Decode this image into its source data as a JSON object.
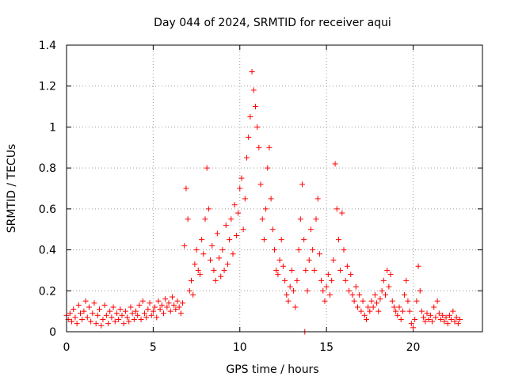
{
  "chart_data": {
    "type": "scatter",
    "title": "Day 044 of 2024, SRMTID for receiver aqui",
    "xlabel": "GPS time / hours",
    "ylabel": "SRMTID / TECUs",
    "xlim": [
      0,
      24
    ],
    "ylim": [
      0,
      1.4
    ],
    "xticks": [
      0,
      5,
      10,
      15,
      20
    ],
    "yticks": [
      0,
      0.2,
      0.4,
      0.6,
      0.8,
      1,
      1.2,
      1.4
    ],
    "xtick_labels": [
      "0",
      "5",
      "10",
      "15",
      "20"
    ],
    "ytick_labels": [
      "0",
      "0.2",
      "0.4",
      "0.6",
      "0.8",
      "1",
      "1.2",
      "1.4"
    ],
    "grid": true,
    "marker": "+",
    "color": "#ff0000",
    "series": [
      {
        "name": "SRMTID",
        "points": [
          [
            0.0,
            0.08
          ],
          [
            0.1,
            0.06
          ],
          [
            0.2,
            0.09
          ],
          [
            0.3,
            0.05
          ],
          [
            0.4,
            0.11
          ],
          [
            0.5,
            0.07
          ],
          [
            0.6,
            0.04
          ],
          [
            0.7,
            0.13
          ],
          [
            0.8,
            0.09
          ],
          [
            0.9,
            0.06
          ],
          [
            1.0,
            0.1
          ],
          [
            1.1,
            0.15
          ],
          [
            1.2,
            0.07
          ],
          [
            1.3,
            0.12
          ],
          [
            1.4,
            0.05
          ],
          [
            1.5,
            0.09
          ],
          [
            1.6,
            0.14
          ],
          [
            1.7,
            0.04
          ],
          [
            1.8,
            0.08
          ],
          [
            1.9,
            0.11
          ],
          [
            2.0,
            0.03
          ],
          [
            2.1,
            0.06
          ],
          [
            2.2,
            0.13
          ],
          [
            2.3,
            0.08
          ],
          [
            2.4,
            0.04
          ],
          [
            2.5,
            0.1
          ],
          [
            2.6,
            0.07
          ],
          [
            2.7,
            0.12
          ],
          [
            2.8,
            0.05
          ],
          [
            2.9,
            0.09
          ],
          [
            3.0,
            0.06
          ],
          [
            3.1,
            0.11
          ],
          [
            3.2,
            0.08
          ],
          [
            3.3,
            0.04
          ],
          [
            3.4,
            0.1
          ],
          [
            3.5,
            0.07
          ],
          [
            3.6,
            0.05
          ],
          [
            3.7,
            0.12
          ],
          [
            3.8,
            0.09
          ],
          [
            3.9,
            0.06
          ],
          [
            4.0,
            0.1
          ],
          [
            4.1,
            0.08
          ],
          [
            4.2,
            0.13
          ],
          [
            4.3,
            0.06
          ],
          [
            4.4,
            0.15
          ],
          [
            4.5,
            0.09
          ],
          [
            4.6,
            0.07
          ],
          [
            4.7,
            0.11
          ],
          [
            4.8,
            0.14
          ],
          [
            4.9,
            0.08
          ],
          [
            5.0,
            0.1
          ],
          [
            5.1,
            0.12
          ],
          [
            5.2,
            0.07
          ],
          [
            5.3,
            0.15
          ],
          [
            5.4,
            0.11
          ],
          [
            5.5,
            0.13
          ],
          [
            5.6,
            0.09
          ],
          [
            5.7,
            0.16
          ],
          [
            5.8,
            0.12
          ],
          [
            5.9,
            0.14
          ],
          [
            6.0,
            0.1
          ],
          [
            6.1,
            0.17
          ],
          [
            6.2,
            0.13
          ],
          [
            6.3,
            0.11
          ],
          [
            6.4,
            0.15
          ],
          [
            6.5,
            0.12
          ],
          [
            6.6,
            0.09
          ],
          [
            6.7,
            0.14
          ],
          [
            6.8,
            0.42
          ],
          [
            6.9,
            0.7
          ],
          [
            7.0,
            0.55
          ],
          [
            7.1,
            0.2
          ],
          [
            7.2,
            0.25
          ],
          [
            7.3,
            0.18
          ],
          [
            7.4,
            0.33
          ],
          [
            7.5,
            0.4
          ],
          [
            7.6,
            0.3
          ],
          [
            7.7,
            0.28
          ],
          [
            7.8,
            0.45
          ],
          [
            7.9,
            0.38
          ],
          [
            8.0,
            0.55
          ],
          [
            8.1,
            0.8
          ],
          [
            8.2,
            0.6
          ],
          [
            8.3,
            0.35
          ],
          [
            8.4,
            0.42
          ],
          [
            8.5,
            0.3
          ],
          [
            8.6,
            0.25
          ],
          [
            8.7,
            0.48
          ],
          [
            8.8,
            0.36
          ],
          [
            8.9,
            0.27
          ],
          [
            9.0,
            0.4
          ],
          [
            9.1,
            0.3
          ],
          [
            9.2,
            0.52
          ],
          [
            9.3,
            0.33
          ],
          [
            9.4,
            0.45
          ],
          [
            9.5,
            0.55
          ],
          [
            9.6,
            0.38
          ],
          [
            9.7,
            0.62
          ],
          [
            9.8,
            0.47
          ],
          [
            9.9,
            0.58
          ],
          [
            10.0,
            0.7
          ],
          [
            10.1,
            0.75
          ],
          [
            10.2,
            0.5
          ],
          [
            10.3,
            0.65
          ],
          [
            10.4,
            0.85
          ],
          [
            10.5,
            0.95
          ],
          [
            10.6,
            1.05
          ],
          [
            10.7,
            1.27
          ],
          [
            10.8,
            1.18
          ],
          [
            10.9,
            1.1
          ],
          [
            11.0,
            1.0
          ],
          [
            11.1,
            0.9
          ],
          [
            11.2,
            0.72
          ],
          [
            11.3,
            0.55
          ],
          [
            11.4,
            0.45
          ],
          [
            11.5,
            0.6
          ],
          [
            11.6,
            0.8
          ],
          [
            11.7,
            0.9
          ],
          [
            11.8,
            0.65
          ],
          [
            11.9,
            0.5
          ],
          [
            12.0,
            0.4
          ],
          [
            12.1,
            0.3
          ],
          [
            12.2,
            0.28
          ],
          [
            12.3,
            0.35
          ],
          [
            12.4,
            0.45
          ],
          [
            12.5,
            0.32
          ],
          [
            12.6,
            0.25
          ],
          [
            12.7,
            0.18
          ],
          [
            12.8,
            0.15
          ],
          [
            12.9,
            0.22
          ],
          [
            13.0,
            0.3
          ],
          [
            13.1,
            0.2
          ],
          [
            13.2,
            0.12
          ],
          [
            13.3,
            0.25
          ],
          [
            13.4,
            0.4
          ],
          [
            13.5,
            0.55
          ],
          [
            13.6,
            0.72
          ],
          [
            13.7,
            0.45
          ],
          [
            13.8,
            0.3
          ],
          [
            13.9,
            0.2
          ],
          [
            14.0,
            0.35
          ],
          [
            14.1,
            0.5
          ],
          [
            14.2,
            0.4
          ],
          [
            14.3,
            0.3
          ],
          [
            14.4,
            0.55
          ],
          [
            14.5,
            0.65
          ],
          [
            14.6,
            0.38
          ],
          [
            14.7,
            0.25
          ],
          [
            14.8,
            0.2
          ],
          [
            14.9,
            0.15
          ],
          [
            15.0,
            0.22
          ],
          [
            15.1,
            0.28
          ],
          [
            15.2,
            0.18
          ],
          [
            15.3,
            0.25
          ],
          [
            15.4,
            0.35
          ],
          [
            15.5,
            0.82
          ],
          [
            15.6,
            0.6
          ],
          [
            15.7,
            0.45
          ],
          [
            15.8,
            0.3
          ],
          [
            15.9,
            0.58
          ],
          [
            16.0,
            0.4
          ],
          [
            16.1,
            0.25
          ],
          [
            16.2,
            0.32
          ],
          [
            16.3,
            0.2
          ],
          [
            16.4,
            0.28
          ],
          [
            16.5,
            0.18
          ],
          [
            16.6,
            0.15
          ],
          [
            16.7,
            0.22
          ],
          [
            16.8,
            0.12
          ],
          [
            16.9,
            0.18
          ],
          [
            17.0,
            0.1
          ],
          [
            17.1,
            0.15
          ],
          [
            17.2,
            0.08
          ],
          [
            17.3,
            0.06
          ],
          [
            17.4,
            0.12
          ],
          [
            17.5,
            0.1
          ],
          [
            17.6,
            0.15
          ],
          [
            17.7,
            0.12
          ],
          [
            17.8,
            0.18
          ],
          [
            17.9,
            0.14
          ],
          [
            18.0,
            0.1
          ],
          [
            18.1,
            0.16
          ],
          [
            18.2,
            0.2
          ],
          [
            18.3,
            0.25
          ],
          [
            18.4,
            0.18
          ],
          [
            18.5,
            0.3
          ],
          [
            18.6,
            0.22
          ],
          [
            18.7,
            0.28
          ],
          [
            18.8,
            0.15
          ],
          [
            18.9,
            0.12
          ],
          [
            19.0,
            0.1
          ],
          [
            19.1,
            0.08
          ],
          [
            19.2,
            0.12
          ],
          [
            19.3,
            0.06
          ],
          [
            19.4,
            0.1
          ],
          [
            19.5,
            0.18
          ],
          [
            19.6,
            0.25
          ],
          [
            19.7,
            0.15
          ],
          [
            19.8,
            0.1
          ],
          [
            19.9,
            0.04
          ],
          [
            20.0,
            0.02
          ],
          [
            20.1,
            0.06
          ],
          [
            20.2,
            0.15
          ],
          [
            20.3,
            0.32
          ],
          [
            20.4,
            0.2
          ],
          [
            20.5,
            0.1
          ],
          [
            20.6,
            0.07
          ],
          [
            20.7,
            0.05
          ],
          [
            20.8,
            0.09
          ],
          [
            20.9,
            0.06
          ],
          [
            21.0,
            0.08
          ],
          [
            21.1,
            0.05
          ],
          [
            21.2,
            0.12
          ],
          [
            21.3,
            0.07
          ],
          [
            21.4,
            0.15
          ],
          [
            21.5,
            0.09
          ],
          [
            21.6,
            0.06
          ],
          [
            21.7,
            0.08
          ],
          [
            21.8,
            0.05
          ],
          [
            21.9,
            0.07
          ],
          [
            22.0,
            0.04
          ],
          [
            22.1,
            0.08
          ],
          [
            22.2,
            0.06
          ],
          [
            22.3,
            0.1
          ],
          [
            22.4,
            0.05
          ],
          [
            22.5,
            0.07
          ],
          [
            22.6,
            0.04
          ],
          [
            22.7,
            0.06
          ],
          [
            13.75,
            0.0
          ]
        ]
      }
    ]
  }
}
